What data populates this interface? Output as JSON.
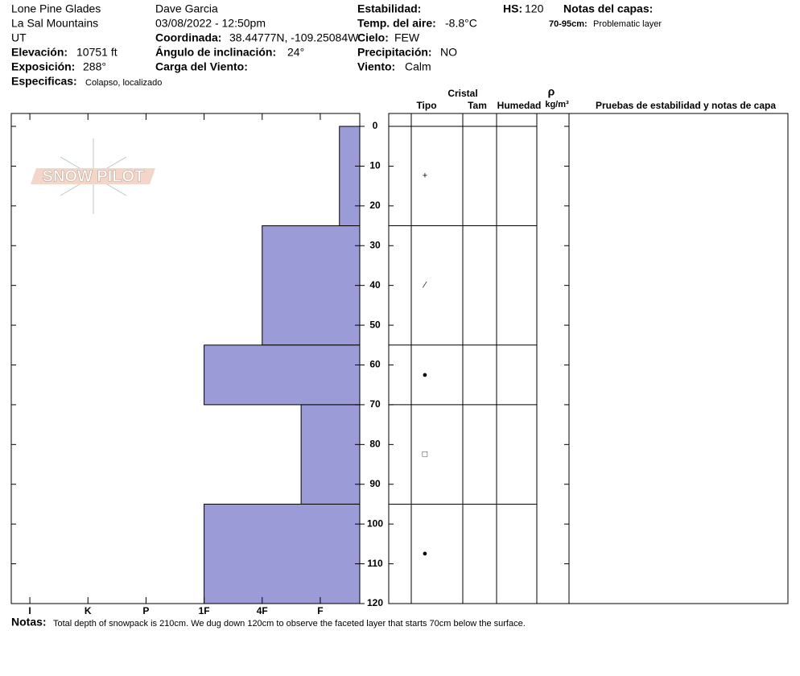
{
  "header": {
    "location": "Lone Pine Glades",
    "range": "La Sal Mountains",
    "state": "UT",
    "elevation": {
      "label": "Elevación:",
      "value": "10751 ft"
    },
    "aspect": {
      "label": "Exposición:",
      "value": "288°"
    },
    "specifics": {
      "label": "Especificas:",
      "value": "Colapso, localizado"
    },
    "observer": "Dave Garcia",
    "datetime": "03/08/2022 - 12:50pm",
    "coordinates": {
      "label": "Coordinada:",
      "value": "38.44777N, -109.25084W"
    },
    "slope": {
      "label": "Ángulo de inclinación:",
      "value": "24°"
    },
    "wind_loading": {
      "label": "Carga del Viento:"
    },
    "stability": {
      "label": "Estabilidad:"
    },
    "air_temp": {
      "label": "Temp. del aire:",
      "value": "-8.8°C"
    },
    "sky": {
      "label": "Cielo:",
      "value": "FEW"
    },
    "precipitation": {
      "label": "Precipitación:",
      "value": "NO"
    },
    "wind": {
      "label": "Viento:",
      "value": "Calm"
    },
    "hs": {
      "label": "HS:",
      "value": 120
    },
    "layer_notes": {
      "label": "Notas del capas:",
      "items": [
        {
          "range": "70-95cm:",
          "text": "Problematic layer"
        }
      ]
    }
  },
  "logo": "SNOW PILOT",
  "profile": {
    "ylim": [
      -3.24,
      120
    ],
    "depth_ticks": [
      0,
      10,
      20,
      30,
      40,
      50,
      60,
      70,
      80,
      90,
      100,
      110,
      120
    ],
    "xlim": [
      6.32,
      0.32
    ],
    "hardness_ticks": [
      {
        "value": 6,
        "label": "I"
      },
      {
        "value": 5,
        "label": "K"
      },
      {
        "value": 4,
        "label": "P"
      },
      {
        "value": 3,
        "label": "1F"
      },
      {
        "value": 2,
        "label": "4F"
      },
      {
        "value": 1,
        "label": "F"
      }
    ],
    "color": "#9b9bd7",
    "layers": [
      {
        "top": 0,
        "bottom": 25,
        "hardness": 0.67,
        "crystal": "+"
      },
      {
        "top": 25,
        "bottom": 55,
        "hardness": 2,
        "crystal": "⁄"
      },
      {
        "top": 55,
        "bottom": 70,
        "hardness": 3,
        "crystal": "●"
      },
      {
        "top": 70,
        "bottom": 95,
        "hardness": 1.33,
        "crystal": "□"
      },
      {
        "top": 95,
        "bottom": 120,
        "hardness": 3,
        "crystal": "●"
      }
    ],
    "columns": {
      "crystal": "Cristal",
      "type": "Tipo",
      "size": "Tam",
      "moisture": "Humedad",
      "density_symbol": "ρ",
      "density_unit": "kg/m³",
      "tests": "Pruebas de estabilidad y notas de capa"
    }
  },
  "notes": {
    "label": "Notas:",
    "text": "Total depth of snowpack is 210cm. We dug down 120cm to observe the faceted layer that starts 70cm below the surface."
  }
}
